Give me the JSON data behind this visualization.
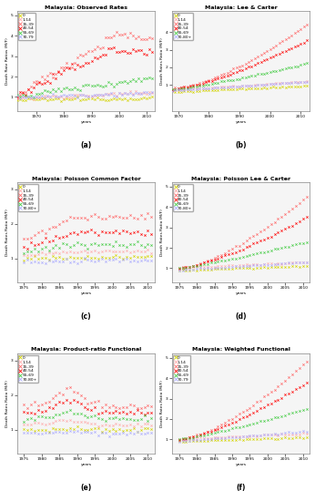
{
  "panels": [
    {
      "title": "Malaysia: Observed Rates",
      "label": "(a)",
      "xlim": [
        1963,
        2013
      ],
      "ylim": [
        0.3,
        5.2
      ],
      "yticks": [
        1,
        2,
        3,
        4,
        5
      ],
      "xticks": [
        1970,
        1980,
        1990,
        2000,
        2010
      ],
      "xstart": 1963,
      "xend": 2012,
      "legend_labels": [
        "0",
        "1-14",
        "15-39",
        "40-54",
        "55-69",
        "70-79"
      ],
      "ylabel": "Death Rate Ratios (M/F)"
    },
    {
      "title": "Malaysia: Lee & Carter",
      "label": "(b)",
      "xlim": [
        1968,
        2013
      ],
      "ylim": [
        -0.5,
        5.2
      ],
      "yticks": [
        1,
        2,
        3,
        4
      ],
      "xticks": [
        1970,
        1980,
        1990,
        2000,
        2010
      ],
      "xstart": 1968,
      "xend": 2012,
      "legend_labels": [
        "0",
        "1-14",
        "15-39",
        "40-54",
        "55-69",
        "70-80+"
      ],
      "ylabel": "Death Rates Ratio (M/F)"
    },
    {
      "title": "Malaysia: Poisson Common Factor",
      "label": "(c)",
      "xlim": [
        1973,
        2012
      ],
      "ylim": [
        0.3,
        3.2
      ],
      "yticks": [
        1,
        2,
        3
      ],
      "xticks": [
        1975,
        1980,
        1985,
        1990,
        1995,
        2000,
        2005,
        2010
      ],
      "xstart": 1975,
      "xend": 2011,
      "legend_labels": [
        "0",
        "1-14",
        "15-39",
        "40-54",
        "55-69",
        "70-80+"
      ],
      "ylabel": "Death Rates Ratio (M/F)"
    },
    {
      "title": "Malaysia: Poisson Lee & Carter",
      "label": "(d)",
      "xlim": [
        1973,
        2012
      ],
      "ylim": [
        0.3,
        5.2
      ],
      "yticks": [
        1,
        2,
        3,
        4,
        5
      ],
      "xticks": [
        1975,
        1980,
        1985,
        1990,
        1995,
        2000,
        2005,
        2010
      ],
      "xstart": 1975,
      "xend": 2011,
      "legend_labels": [
        "0",
        "1-14",
        "15-39",
        "40-54",
        "55-69",
        "70-80+"
      ],
      "ylabel": "Death Rates Ratio (M/F)"
    },
    {
      "title": "Malaysia: Product-ratio Functional",
      "label": "(e)",
      "xlim": [
        1973,
        2012
      ],
      "ylim": [
        0.3,
        3.2
      ],
      "yticks": [
        1,
        2,
        3
      ],
      "xticks": [
        1975,
        1980,
        1985,
        1990,
        1995,
        2000,
        2005,
        2010
      ],
      "xstart": 1975,
      "xend": 2011,
      "legend_labels": [
        "0",
        "1-14",
        "15-39",
        "40-54",
        "55-69",
        "70-80+"
      ],
      "ylabel": "Death Rates Ratio (M/F)"
    },
    {
      "title": "Malaysia: Weighted Functional",
      "label": "(f)",
      "xlim": [
        1973,
        2012
      ],
      "ylim": [
        0.3,
        5.2
      ],
      "yticks": [
        1,
        2,
        3,
        4,
        5
      ],
      "xticks": [
        1975,
        1980,
        1985,
        1990,
        1995,
        2000,
        2005,
        2010
      ],
      "xstart": 1975,
      "xend": 2011,
      "legend_labels": [
        "0",
        "1-14",
        "15-39",
        "40-54",
        "55-69",
        "70-79"
      ],
      "ylabel": "Death Rates Ratio (M/F)"
    }
  ],
  "colors": [
    "#d4d400",
    "#ffaaaa",
    "#ff6666",
    "#ff0000",
    "#44cc44",
    "#aaaaff",
    "#8888ff"
  ],
  "bg_color": "#f5f5f5"
}
